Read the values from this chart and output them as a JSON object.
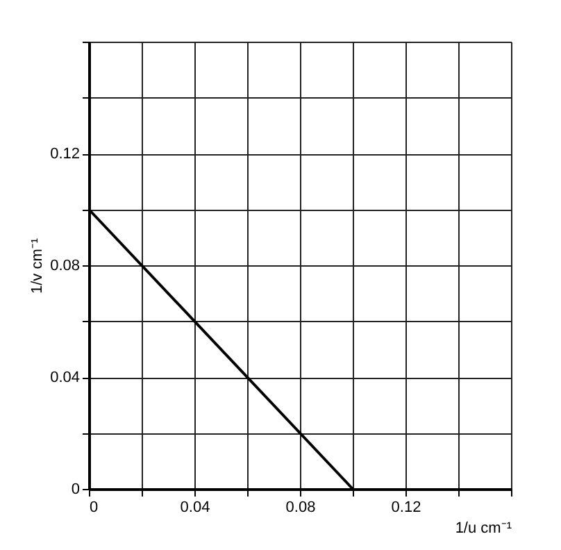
{
  "chart_data": {
    "type": "line",
    "xlabel": "1/u cm⁻¹",
    "ylabel": "1/v cm⁻¹",
    "x": [
      0,
      0.1
    ],
    "series": [
      {
        "color": "#000000",
        "values": [
          0.1,
          0
        ]
      }
    ],
    "xlim": [
      0,
      0.16
    ],
    "ylim": [
      0,
      0.16
    ],
    "xticks": [
      0,
      {
        "value": 0.02,
        "label": null
      },
      0.04,
      {
        "value": 0.06,
        "label": null
      },
      0.08,
      {
        "value": 0.1,
        "label": null
      },
      0.12,
      {
        "value": 0.14,
        "label": null
      },
      {
        "value": 0.16,
        "label": null
      }
    ],
    "yticks": [
      0,
      {
        "value": 0.02,
        "label": null
      },
      0.04,
      {
        "value": 0.06,
        "label": null
      },
      0.08,
      {
        "value": 0.1,
        "label": null
      },
      0.12,
      {
        "value": 0.14,
        "label": null
      },
      {
        "value": 0.16,
        "label": null
      }
    ],
    "grid": true,
    "marker": "none",
    "line_style": "solid"
  }
}
